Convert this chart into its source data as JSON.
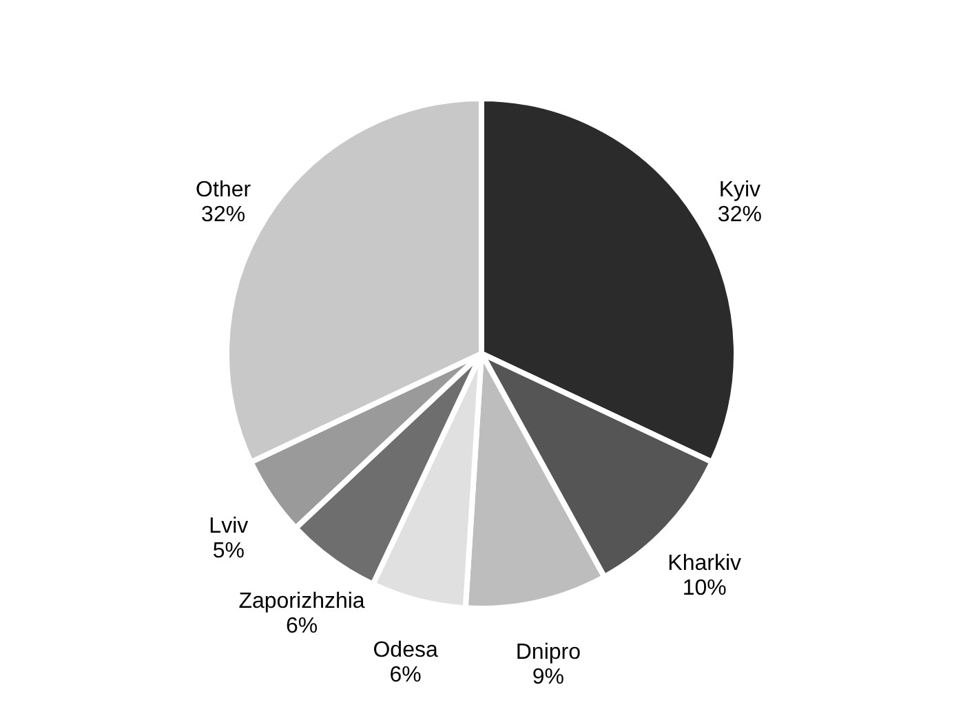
{
  "chart_data": {
    "type": "pie",
    "categories": [
      "Kyiv",
      "Kharkiv",
      "Dnipro",
      "Odesa",
      "Zaporizhzhia",
      "Lviv",
      "Other"
    ],
    "values": [
      32,
      10,
      9,
      6,
      6,
      5,
      32
    ],
    "value_labels": [
      "32%",
      "10%",
      "9%",
      "6%",
      "6%",
      "5%",
      "32%"
    ],
    "colors": [
      "#2b2b2b",
      "#555555",
      "#bdbdbd",
      "#e0e0e0",
      "#6e6e6e",
      "#9a9a9a",
      "#c8c8c8"
    ],
    "legend": false
  }
}
